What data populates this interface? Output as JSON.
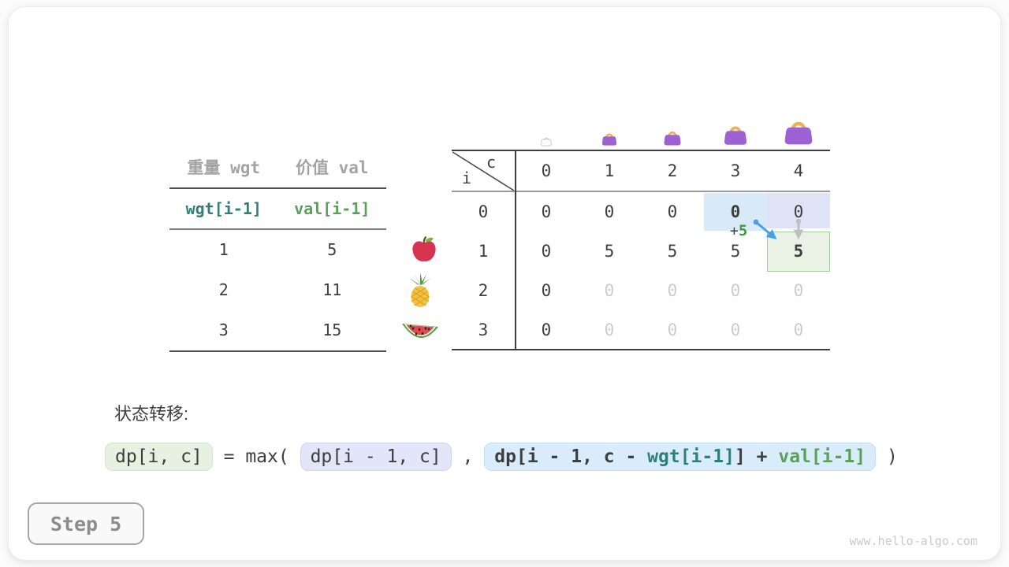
{
  "step_badge": {
    "label": "Step 5"
  },
  "watermark": {
    "text": "www.hello-algo.com"
  },
  "items_table": {
    "col_headers": [
      "重量 wgt",
      "价值 val"
    ],
    "formula_row": {
      "wgt": "wgt[i-1]",
      "val": "val[i-1]"
    },
    "rows": [
      {
        "wgt": "1",
        "val": "5",
        "icon": "apple-icon"
      },
      {
        "wgt": "2",
        "val": "11",
        "icon": "pineapple-icon"
      },
      {
        "wgt": "3",
        "val": "15",
        "icon": "watermelon-icon"
      }
    ]
  },
  "dp_table": {
    "corner": {
      "col_var": "c",
      "row_var": "i"
    },
    "col_headers": [
      "0",
      "1",
      "2",
      "3",
      "4"
    ],
    "bags": [
      {
        "icon": "handbag-ghost-icon",
        "size": 16
      },
      {
        "icon": "handbag-icon",
        "size": 22
      },
      {
        "icon": "handbag-icon",
        "size": 26
      },
      {
        "icon": "handbag-icon",
        "size": 34
      },
      {
        "icon": "handbag-icon",
        "size": 42
      }
    ],
    "rows": [
      {
        "label": "0",
        "cells": [
          {
            "text": "0"
          },
          {
            "text": "0"
          },
          {
            "text": "0"
          },
          {
            "text": "0",
            "bold": true,
            "highlight": "blue"
          },
          {
            "text": "0",
            "highlight": "lavender"
          }
        ]
      },
      {
        "label": "1",
        "cells": [
          {
            "text": "0"
          },
          {
            "text": "5"
          },
          {
            "text": "5"
          },
          {
            "text": "5"
          },
          {
            "text": "5",
            "bold": true,
            "highlight": "green"
          }
        ]
      },
      {
        "label": "2",
        "cells": [
          {
            "text": "0"
          },
          {
            "text": "0",
            "dim": true
          },
          {
            "text": "0",
            "dim": true
          },
          {
            "text": "0",
            "dim": true
          },
          {
            "text": "0",
            "dim": true
          }
        ]
      },
      {
        "label": "3",
        "cells": [
          {
            "text": "0"
          },
          {
            "text": "0",
            "dim": true
          },
          {
            "text": "0",
            "dim": true
          },
          {
            "text": "0",
            "dim": true
          },
          {
            "text": "0",
            "dim": true
          }
        ]
      }
    ],
    "annotation": {
      "plus": "+",
      "value": "5"
    }
  },
  "transition": {
    "label": "状态转移:",
    "lhs": "dp[i, c]",
    "equals": " = ",
    "func_open": "max( ",
    "arg1": "dp[i - 1, c]",
    "comma": " , ",
    "arg2": [
      {
        "text": "dp[i - 1, c - ",
        "color": "dark"
      },
      {
        "text": "wgt[i-1]",
        "color": "teal"
      },
      {
        "text": "] + ",
        "color": "dark"
      },
      {
        "text": "val[i-1]",
        "color": "green"
      }
    ],
    "close": " )"
  },
  "colors": {
    "teal_text": "#2f7e79",
    "green_text": "#5aa05a",
    "highlight_blue": "#d8e9f8",
    "highlight_lavender": "#e0e2f7",
    "highlight_green_bg": "#e9f2e4",
    "highlight_green_border": "#a4cb9c",
    "arrow_blue": "#4aa0e8",
    "arrow_gray": "#bfbfbf",
    "bag_purple": "#9c62d4",
    "bag_handle": "#f1b04e"
  }
}
